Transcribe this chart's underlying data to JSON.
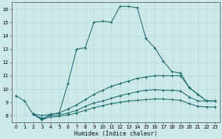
{
  "xlabel": "Humidex (Indice chaleur)",
  "bg_color": "#cce8e8",
  "grid_color": "#b8d8d8",
  "line_color": "#1a6b6b",
  "xlim": [
    -0.5,
    23.5
  ],
  "ylim": [
    7.5,
    16.5
  ],
  "xticks": [
    0,
    1,
    2,
    3,
    4,
    5,
    6,
    7,
    8,
    9,
    10,
    11,
    12,
    13,
    14,
    15,
    16,
    17,
    18,
    19,
    20,
    21,
    22,
    23
  ],
  "yticks": [
    8,
    9,
    10,
    11,
    12,
    13,
    14,
    15,
    16
  ],
  "series1_x": [
    0,
    1,
    2,
    3,
    4,
    5,
    6,
    7,
    8,
    9,
    10,
    11,
    12,
    13,
    14,
    15,
    16,
    17,
    18,
    19,
    20,
    21,
    22,
    23
  ],
  "series1_y": [
    9.5,
    9.1,
    8.1,
    7.7,
    8.1,
    8.2,
    10.4,
    13.0,
    13.1,
    15.0,
    15.1,
    15.0,
    16.2,
    16.2,
    16.1,
    13.8,
    13.1,
    12.1,
    11.3,
    11.2,
    10.1,
    9.6,
    9.1,
    9.1
  ],
  "series2_x": [
    2,
    3,
    4,
    5,
    6,
    7,
    8,
    9,
    10,
    11,
    12,
    13,
    14,
    15,
    16,
    17,
    18,
    19,
    20,
    21,
    22,
    23
  ],
  "series2_y": [
    8.15,
    8.0,
    8.1,
    8.2,
    8.5,
    8.8,
    9.2,
    9.6,
    9.9,
    10.2,
    10.4,
    10.6,
    10.8,
    10.9,
    11.0,
    11.0,
    11.0,
    11.0,
    10.1,
    9.6,
    9.1,
    9.1
  ],
  "series3_x": [
    2,
    3,
    4,
    5,
    6,
    7,
    8,
    9,
    10,
    11,
    12,
    13,
    14,
    15,
    16,
    17,
    18,
    19,
    20,
    21,
    22,
    23
  ],
  "series3_y": [
    8.1,
    7.8,
    8.0,
    8.05,
    8.2,
    8.4,
    8.7,
    8.95,
    9.1,
    9.3,
    9.5,
    9.65,
    9.8,
    9.9,
    9.95,
    9.9,
    9.9,
    9.85,
    9.4,
    9.1,
    9.1,
    9.1
  ],
  "series4_x": [
    2,
    3,
    4,
    5,
    6,
    7,
    8,
    9,
    10,
    11,
    12,
    13,
    14,
    15,
    16,
    17,
    18,
    19,
    20,
    21,
    22,
    23
  ],
  "series4_y": [
    8.1,
    7.7,
    7.9,
    7.95,
    8.05,
    8.2,
    8.4,
    8.6,
    8.75,
    8.9,
    9.0,
    9.1,
    9.15,
    9.2,
    9.25,
    9.25,
    9.2,
    9.15,
    8.9,
    8.7,
    8.65,
    8.65
  ]
}
